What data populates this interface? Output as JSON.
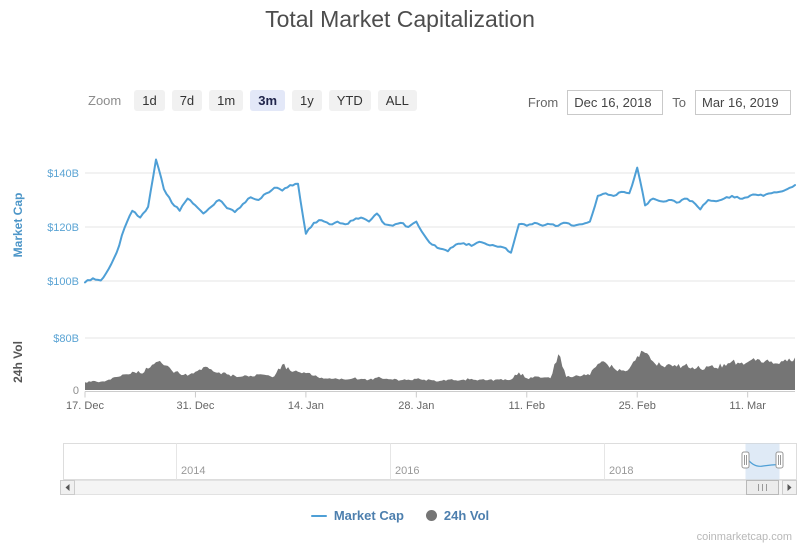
{
  "toolbar": {
    "zoom_label": "Zoom",
    "buttons": [
      {
        "label": "1d",
        "selected": false
      },
      {
        "label": "7d",
        "selected": false
      },
      {
        "label": "1m",
        "selected": false
      },
      {
        "label": "3m",
        "selected": true
      },
      {
        "label": "1y",
        "selected": false
      },
      {
        "label": "YTD",
        "selected": false
      },
      {
        "label": "ALL",
        "selected": false
      }
    ],
    "from_label": "From",
    "from_value": "Dec 16, 2018",
    "to_label": "To",
    "to_value": "Mar 16, 2019"
  },
  "chart_data": [
    {
      "type": "line",
      "name": "Market Cap",
      "title": "Total Market Capitalization",
      "ylabel": "Market Cap",
      "unit": "$B",
      "color": "#4E9FD6",
      "tick_color": "#5BA4D4",
      "axis_title_color": "#4D96C8",
      "ylim": [
        93,
        148
      ],
      "grid": true,
      "yticks": [
        {
          "value": 100,
          "label": "$100B"
        },
        {
          "value": 120,
          "label": "$120B"
        },
        {
          "value": 140,
          "label": "$140B"
        }
      ],
      "xticks": [
        {
          "day": 0,
          "label": "17. Dec"
        },
        {
          "day": 14,
          "label": "31. Dec"
        },
        {
          "day": 28,
          "label": "14. Jan"
        },
        {
          "day": 42,
          "label": "28. Jan"
        },
        {
          "day": 56,
          "label": "11. Feb"
        },
        {
          "day": 70,
          "label": "25. Feb"
        },
        {
          "day": 84,
          "label": "11. Mar"
        }
      ],
      "x_interval": "daily, day 0 = first visible tick (17. Dec)",
      "values": [
        99.5,
        101,
        100.2,
        104.5,
        110.5,
        119.5,
        126,
        123.5,
        127.5,
        145,
        134,
        129,
        126,
        130.5,
        128,
        125,
        127.5,
        130,
        127,
        125.5,
        128.5,
        131,
        130,
        132.5,
        134.5,
        133.5,
        135.5,
        136,
        117.5,
        121.5,
        122.5,
        121,
        122,
        121,
        122.5,
        123.5,
        122,
        125,
        121,
        120.5,
        121.5,
        120,
        122,
        117,
        113.5,
        112,
        111,
        113.5,
        114,
        113,
        114.5,
        113.5,
        113,
        112.5,
        110.5,
        121,
        120.5,
        121.5,
        120.5,
        121,
        120.5,
        121.5,
        120.5,
        121,
        122,
        131.5,
        132.5,
        131.5,
        133,
        132.5,
        142,
        128,
        130.5,
        129.5,
        130,
        129,
        130.5,
        129.5,
        126.5,
        130,
        129.5,
        130.5,
        131.5,
        130.5,
        131,
        132,
        131.5,
        132.5,
        133,
        134,
        135.5
      ]
    },
    {
      "type": "area",
      "name": "24h Vol",
      "ylabel": "24h Vol",
      "unit": "$B",
      "color": "#757575",
      "axis_title_color": "#555555",
      "ylim": [
        0,
        80
      ],
      "yticks": [
        {
          "value": 0,
          "label": "0",
          "color": "#8e8e8e"
        },
        {
          "value": 80,
          "label": "$80B",
          "color": "#5BA4D4"
        }
      ],
      "values": [
        12,
        14,
        13,
        16,
        20,
        24,
        28,
        26,
        33,
        43,
        38,
        30,
        25,
        22,
        28,
        35,
        32,
        27,
        24,
        22,
        21,
        22,
        24,
        23,
        21,
        39,
        30,
        28,
        26,
        22,
        19,
        18,
        17,
        16,
        18,
        17,
        16,
        19,
        17,
        16,
        15,
        16,
        17,
        16,
        15,
        14,
        16,
        15,
        16,
        17,
        16,
        15,
        16,
        15,
        16,
        27,
        18,
        21,
        19,
        18,
        55,
        20,
        21,
        22,
        23,
        40,
        42,
        34,
        30,
        33,
        52,
        57,
        44,
        38,
        40,
        36,
        38,
        35,
        33,
        36,
        34,
        40,
        44,
        41,
        43,
        45,
        42,
        44,
        40,
        44,
        50
      ]
    }
  ],
  "navigator": {
    "labels": [
      "2014",
      "2016",
      "2018"
    ]
  },
  "legend": [
    {
      "label": "Market Cap",
      "marker": "line"
    },
    {
      "label": "24h Vol",
      "marker": "circle"
    }
  ],
  "watermark": "coinmarketcap.com"
}
